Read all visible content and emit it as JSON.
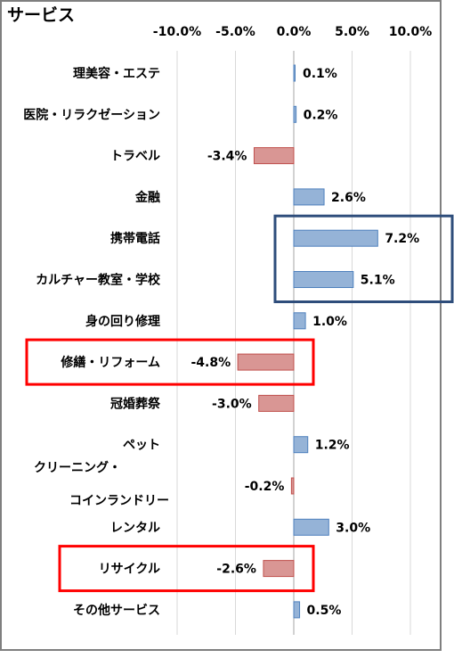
{
  "chart_data": {
    "type": "bar",
    "orientation": "horizontal",
    "title": "サービス",
    "xlim": [
      -10,
      10
    ],
    "xticks": [
      -10,
      -5,
      0,
      5,
      10
    ],
    "tick_labels": [
      "-10.0%",
      "-5.0%",
      "0.0%",
      "5.0%",
      "10.0%"
    ],
    "grid": true,
    "categories": [
      "理美容・エステ",
      "医院・リラクゼーション",
      "トラベル",
      "金融",
      "携帯電話",
      "カルチャー教室・学校",
      "身の回り修理",
      "修繕・リフォーム",
      "冠婚葬祭",
      "ペット",
      "クリーニング・コインランドリー",
      "レンタル",
      "リサイクル",
      "その他サービス"
    ],
    "category_display": [
      [
        "理美容・エステ"
      ],
      [
        "医院・リラクゼーション"
      ],
      [
        "トラベル"
      ],
      [
        "金融"
      ],
      [
        "携帯電話"
      ],
      [
        "カルチャー教室・学校"
      ],
      [
        "身の回り修理"
      ],
      [
        "修繕・リフォーム"
      ],
      [
        "冠婚葬祭"
      ],
      [
        "ペット"
      ],
      [
        "クリーニング・",
        "コインランドリー"
      ],
      [
        "レンタル"
      ],
      [
        "リサイクル"
      ],
      [
        "その他サービス"
      ]
    ],
    "values": [
      0.1,
      0.2,
      -3.4,
      2.6,
      7.2,
      5.1,
      1.0,
      -4.8,
      -3.0,
      1.2,
      -0.2,
      3.0,
      -2.6,
      0.5
    ],
    "value_labels": [
      "0.1%",
      "0.2%",
      "-3.4%",
      "2.6%",
      "7.2%",
      "5.1%",
      "1.0%",
      "-4.8%",
      "-3.0%",
      "1.2%",
      "-0.2%",
      "3.0%",
      "-2.6%",
      "0.5%"
    ],
    "colors": {
      "positive": "#95b3d7",
      "positive_border": "#4f81bd",
      "negative": "#d99694",
      "negative_border": "#c0504d"
    },
    "highlights": [
      {
        "categories": [
          "携帯電話",
          "カルチャー教室・学校"
        ],
        "color": "#2e4d7b"
      },
      {
        "categories": [
          "修繕・リフォーム"
        ],
        "color": "#ff0000"
      },
      {
        "categories": [
          "リサイクル"
        ],
        "color": "#ff0000"
      }
    ]
  }
}
